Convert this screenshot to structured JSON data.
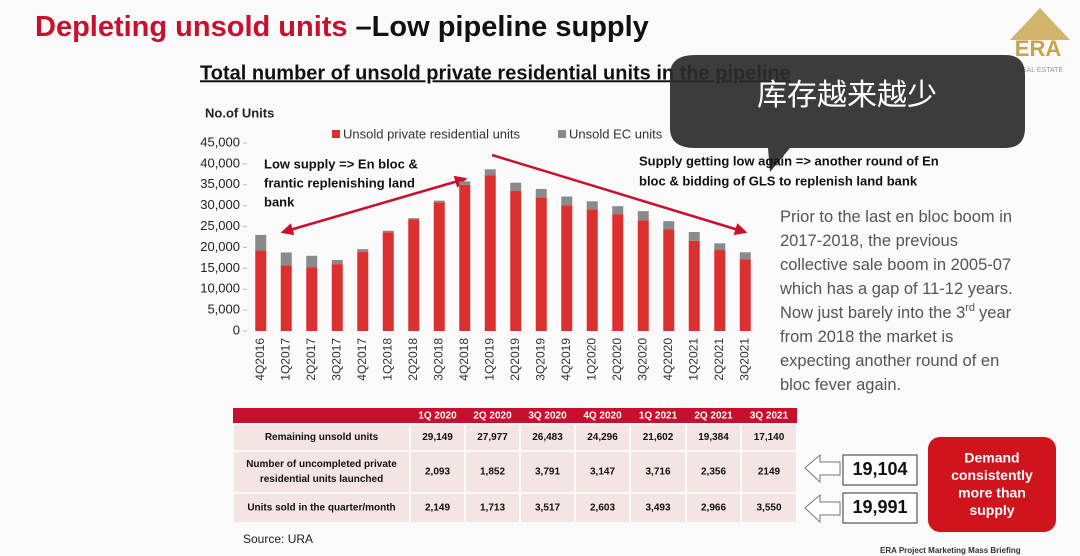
{
  "header": {
    "title_highlight": "Depleting unsold units",
    "title_rest": "–Low pipeline supply",
    "logo": "ERA",
    "logo_sub": "REAL ESTATE"
  },
  "chart_data": {
    "type": "bar",
    "stacked": true,
    "title": "Total number of unsold private residential units in the pipeline",
    "y_label": "No.of Units",
    "categories": [
      "4Q2016",
      "1Q2017",
      "2Q2017",
      "3Q2017",
      "4Q2017",
      "1Q2018",
      "2Q2018",
      "3Q2018",
      "4Q2018",
      "1Q2019",
      "2Q2019",
      "3Q2019",
      "4Q2019",
      "1Q2020",
      "2Q2020",
      "3Q2020",
      "4Q2020",
      "1Q2021",
      "2Q2021",
      "3Q2021"
    ],
    "series": [
      {
        "name": "Unsold private residential units",
        "color": "#dc2f2f",
        "values": [
          19300,
          15700,
          15200,
          16000,
          18900,
          23600,
          26700,
          30800,
          35000,
          37300,
          33500,
          32000,
          30100,
          29149,
          27977,
          26483,
          24296,
          21602,
          19384,
          17140
        ]
      },
      {
        "name": "Unsold EC units",
        "color": "#8a8a8a",
        "values": [
          3700,
          3100,
          2800,
          1000,
          700,
          400,
          300,
          400,
          800,
          1400,
          2000,
          2000,
          2100,
          1900,
          1900,
          2200,
          2000,
          2100,
          1600,
          1700
        ]
      }
    ],
    "ylim": [
      0,
      45000
    ],
    "yticks": [
      0,
      {
        "value": 5000,
        "label": "5,000"
      },
      {
        "value": 10000,
        "label": "10,000"
      },
      {
        "value": 15000,
        "label": "15,000"
      },
      {
        "value": 20000,
        "label": "20,000"
      },
      {
        "value": 25000,
        "label": "25,000"
      },
      {
        "value": 30000,
        "label": "30,000"
      },
      {
        "value": 35000,
        "label": "35,000"
      },
      {
        "value": 40000,
        "label": "40,000"
      },
      {
        "value": 45000,
        "label": "45,000"
      }
    ],
    "grid": false,
    "legend": "top",
    "annotations": [
      {
        "lines": [
          "Low supply => En bloc &",
          "frantic replenishing land",
          "bank"
        ]
      },
      {
        "lines": [
          "Supply getting low again => another round of En",
          "bloc & bidding of GLS to replenish land bank"
        ]
      }
    ]
  },
  "bubble": "库存越来越少",
  "note": {
    "lines": [
      "Prior to the last en bloc boom in",
      "2017-2018, the previous",
      "collective sale boom in 2005-07",
      "which has a gap of 11-12 years.",
      "Now just barely into the 3",
      "from 2018 the market is",
      "expecting another round of en",
      "bloc fever again."
    ],
    "superscript": "rd",
    "line5_tail": "year"
  },
  "table": {
    "columns": [
      "1Q 2020",
      "2Q 2020",
      "3Q 2020",
      "4Q 2020",
      "1Q 2021",
      "2Q 2021",
      "3Q 2021"
    ],
    "rows": [
      {
        "label_lines": [
          "Remaining unsold units"
        ],
        "cells": [
          "29,149",
          "27,977",
          "26,483",
          "24,296",
          "21,602",
          "19,384",
          "17,140"
        ]
      },
      {
        "label_lines": [
          "Number of uncompleted private",
          "residential units launched"
        ],
        "cells": [
          "2,093",
          "1,852",
          "3,791",
          "3,147",
          "3,716",
          "2,356",
          "2149"
        ]
      },
      {
        "label_lines": [
          "Units sold in the quarter/month"
        ],
        "cells": [
          "2,149",
          "1,713",
          "3,517",
          "2,603",
          "3,493",
          "2,966",
          "3,550"
        ]
      }
    ]
  },
  "callouts": [
    "19,104",
    "19,991"
  ],
  "demand_box": [
    "Demand",
    "consistently",
    "more than",
    "supply"
  ],
  "source": "Source: URA",
  "footer": "ERA Project Marketing Mass Briefing"
}
